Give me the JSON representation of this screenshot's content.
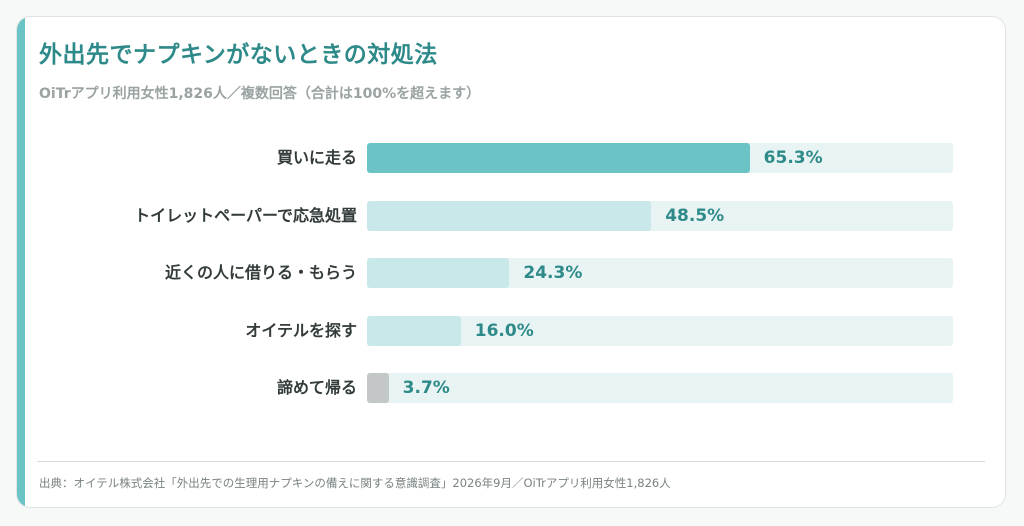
{
  "header": {
    "title": "外出先でナプキンがないときの対処法",
    "subtitle": "OiTrアプリ利用女性1,826人／複数回答（合計は100%を超えます）"
  },
  "footer": {
    "source": "出典：オイテル株式会社「外出先での生理用ナプキンの備えに関する意識調査」2026年9月／OiTrアプリ利用女性1,826人"
  },
  "colors": {
    "accent": "#6cc3c6",
    "primary_bar": "#6cc3c6",
    "secondary_bar": "#c9e8ea",
    "minor_bar": "#c3c7c7",
    "track": "#e8f4f4",
    "title": "#2e8a89"
  },
  "chart_data": {
    "type": "bar",
    "orientation": "horizontal",
    "title": "外出先でナプキンがないときの対処法",
    "subtitle": "OiTrアプリ利用女性1,826人／複数回答（合計は100%を超えます）",
    "xlim": [
      0,
      100
    ],
    "grid": false,
    "legend": "none",
    "categories": [
      "買いに走る",
      "トイレットペーパーで応急処置",
      "近くの人に借りる・もらう",
      "オイテルを探す",
      "諦めて帰る"
    ],
    "values": [
      65.3,
      48.5,
      24.3,
      16.0,
      3.7
    ],
    "value_labels": [
      "65.3%",
      "48.5%",
      "24.3%",
      "16.0%",
      "3.7%"
    ],
    "bar_colors": [
      "#6cc3c6",
      "#c9e8ea",
      "#c9e8ea",
      "#c9e8ea",
      "#c3c7c7"
    ]
  }
}
